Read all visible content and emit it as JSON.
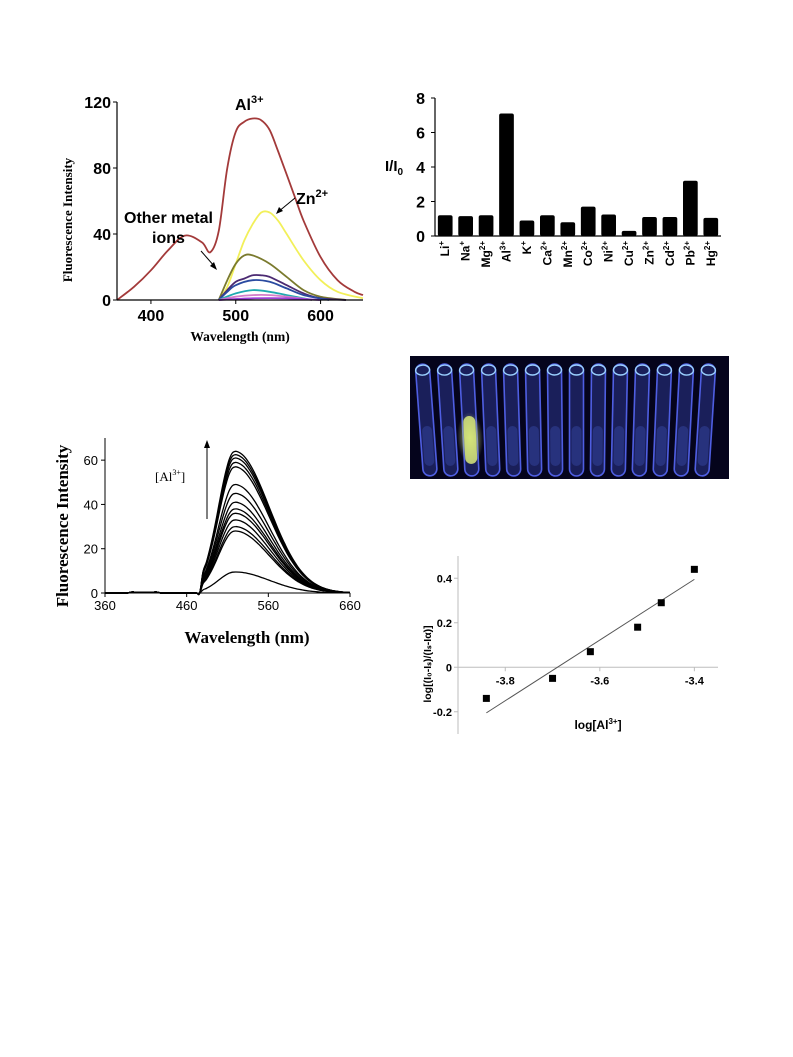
{
  "colors": {
    "panel1_curves": [
      "#a33a3a",
      "#f2f05a",
      "#7a7a2e",
      "#4b2a72",
      "#2a4aa0",
      "#1faab0",
      "#d47ec8",
      "#9d3fd8"
    ],
    "bar_fill": "#000000",
    "photo_bg": "#05041c",
    "photo_glow": "#5a6cff",
    "photo_green": "#d7e87a"
  },
  "panel1": {
    "ylabel": "Fluorescence Intensity",
    "xlabel": "Wavelength (nm)",
    "ann_al": "Al",
    "ann_al_sup": "3+",
    "ann_zn": "Zn",
    "ann_zn_sup": "2+",
    "ann_other_line1": "Other metal",
    "ann_other_line2": "ions"
  },
  "panel2": {
    "ylabel_main": "I/I",
    "ylabel_sub": "0"
  },
  "panel3": {
    "ylabel": "Fluorescence Intensity",
    "xlabel": "Wavelength (nm)",
    "ann": "[Al",
    "ann_sup": "3+",
    "ann_close": "]"
  },
  "panel4": {
    "ylabel": "log[(I₀-Iₛ)/(Iₛ-Iα)]",
    "xlabel_main": "log[Al",
    "xlabel_sup": "3+",
    "xlabel_close": "]"
  },
  "photo": {
    "tube_count": 14,
    "bright_tube_index": 2,
    "icon": "photo-vials"
  },
  "chart_data": [
    {
      "type": "line",
      "xlabel": "Wavelength (nm)",
      "ylabel": "Fluorescence Intensity",
      "xlim": [
        360,
        650
      ],
      "ylim": [
        0,
        120
      ],
      "xticks": [
        400,
        500,
        600
      ],
      "yticks": [
        0,
        40,
        80,
        120
      ],
      "series": [
        {
          "name": "Al3+",
          "x": [
            360,
            380,
            400,
            420,
            440,
            460,
            470,
            480,
            490,
            500,
            510,
            520,
            530,
            540,
            550,
            560,
            570,
            580,
            600,
            620,
            640,
            650
          ],
          "y": [
            0,
            8,
            18,
            30,
            39,
            35,
            29,
            42,
            80,
            102,
            108,
            110,
            109,
            103,
            90,
            76,
            62,
            48,
            26,
            12,
            5,
            3
          ]
        },
        {
          "name": "Zn2+",
          "x": [
            480,
            490,
            500,
            510,
            520,
            530,
            540,
            550,
            560,
            580,
            600,
            620,
            650
          ],
          "y": [
            0,
            8,
            22,
            36,
            46,
            53,
            53,
            48,
            40,
            24,
            12,
            5,
            1
          ]
        },
        {
          "x": [
            480,
            490,
            500,
            510,
            520,
            540,
            560,
            580,
            600,
            630
          ],
          "y": [
            0,
            12,
            22,
            27,
            27,
            22,
            14,
            6,
            2,
            0
          ]
        },
        {
          "x": [
            480,
            490,
            500,
            510,
            520,
            530,
            540,
            560,
            580,
            600,
            630
          ],
          "y": [
            0,
            6,
            11,
            13,
            15,
            15,
            14,
            9,
            4,
            1,
            0
          ]
        },
        {
          "x": [
            480,
            490,
            500,
            520,
            540,
            560,
            580,
            610
          ],
          "y": [
            0,
            5,
            9,
            12,
            11,
            7,
            3,
            0
          ]
        },
        {
          "x": [
            480,
            500,
            520,
            540,
            560,
            590
          ],
          "y": [
            0,
            4,
            6,
            5,
            3,
            0
          ]
        },
        {
          "x": [
            480,
            500,
            520,
            540,
            560,
            590
          ],
          "y": [
            0,
            2,
            3,
            3,
            2,
            0
          ]
        },
        {
          "x": [
            480,
            520,
            560,
            600
          ],
          "y": [
            0,
            1,
            1,
            0
          ]
        }
      ]
    },
    {
      "type": "bar",
      "ylabel": "I/I0",
      "ylim": [
        0,
        8
      ],
      "yticks": [
        0,
        2,
        4,
        6,
        8
      ],
      "categories": [
        "Li",
        "Na",
        "Mg",
        "Al",
        "K",
        "Ca",
        "Mn",
        "Co",
        "Ni",
        "Cu",
        "Zn",
        "Cd",
        "Pb",
        "Hg"
      ],
      "category_superscripts": [
        "+",
        "+",
        "2+",
        "3+",
        "+",
        "2+",
        "2+",
        "2+",
        "2+",
        "2+",
        "2+",
        "2+",
        "2+",
        "2+"
      ],
      "values": [
        1.2,
        1.15,
        1.2,
        7.1,
        0.9,
        1.2,
        0.8,
        1.7,
        1.25,
        0.3,
        1.1,
        1.1,
        3.2,
        1.05
      ]
    },
    {
      "type": "line",
      "xlabel": "Wavelength (nm)",
      "ylabel": "Fluorescence Intensity",
      "xlim": [
        360,
        660
      ],
      "ylim": [
        0,
        70
      ],
      "xticks": [
        360,
        460,
        560,
        660
      ],
      "yticks": [
        0,
        20,
        40,
        60
      ],
      "peak_x": 519,
      "series_peaks": [
        9.5,
        28,
        30,
        33,
        36,
        38,
        41,
        45,
        49,
        57,
        59,
        61,
        62.5,
        64
      ]
    },
    {
      "type": "scatter",
      "xlabel": "log[Al3+]",
      "ylabel": "log[(I0-Is)/(Is-Ia)]",
      "xlim": [
        -3.9,
        -3.35
      ],
      "ylim": [
        -0.3,
        0.5
      ],
      "xticks": [
        -3.8,
        -3.6,
        -3.4
      ],
      "yticks": [
        -0.2,
        0,
        0.2,
        0.4
      ],
      "x": [
        -3.84,
        -3.7,
        -3.62,
        -3.52,
        -3.47,
        -3.4
      ],
      "y": [
        -0.14,
        -0.05,
        0.07,
        0.18,
        0.29,
        0.44
      ],
      "fit": {
        "x": [
          -3.84,
          -3.4
        ],
        "y": [
          -0.205,
          0.395
        ]
      }
    }
  ]
}
